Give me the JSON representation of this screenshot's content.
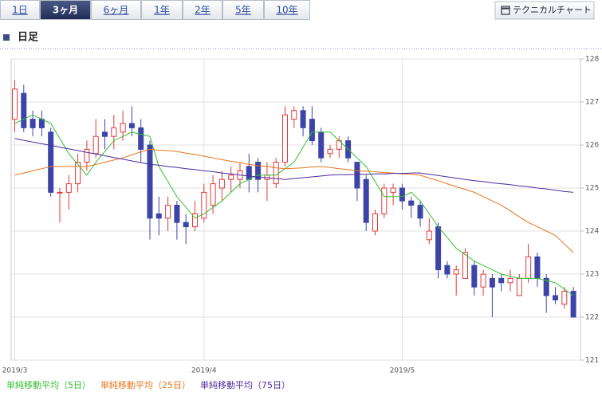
{
  "tabs": [
    "1日",
    "3ヶ月",
    "6ヶ月",
    "1年",
    "2年",
    "5年",
    "10年"
  ],
  "selected_tab": 1,
  "button": "テクニカルチャート",
  "section": "日足",
  "chart_data": {
    "type": "candlestick",
    "categories": [
      "2019/3",
      null,
      null,
      null,
      null,
      null,
      null,
      null,
      null,
      null,
      null,
      null,
      null,
      null,
      null,
      null,
      null,
      null,
      null,
      null,
      null,
      "2019/4",
      null,
      null,
      null,
      null,
      null,
      null,
      null,
      null,
      null,
      null,
      null,
      null,
      null,
      null,
      null,
      null,
      null,
      null,
      null,
      null,
      null,
      "2019/5",
      null,
      null,
      null,
      null,
      null,
      null,
      null,
      null,
      null,
      null,
      null,
      null,
      null,
      null,
      null,
      null,
      null,
      null,
      null
    ],
    "open": [
      126.6,
      127.2,
      126.6,
      126.6,
      126.3,
      124.9,
      124.9,
      125.1,
      125.6,
      125.8,
      126.3,
      126.2,
      126.3,
      126.5,
      126.4,
      126.0,
      124.4,
      124.3,
      124.6,
      124.2,
      124.1,
      124.3,
      124.6,
      125.0,
      125.2,
      125.2,
      125.5,
      125.6,
      125.2,
      125.1,
      125.6,
      126.6,
      126.8,
      126.6,
      126.3,
      125.8,
      125.9,
      126.1,
      125.6,
      125.2,
      124.0,
      124.4,
      124.9,
      125.0,
      124.7,
      124.6,
      123.8,
      124.1,
      123.2,
      123.0,
      122.9,
      123.2,
      122.7,
      122.9,
      122.9,
      122.8,
      122.5,
      122.9,
      123.4,
      122.9,
      122.5,
      122.3,
      122.6
    ],
    "high": [
      127.5,
      127.4,
      126.8,
      126.8,
      126.4,
      125.0,
      125.3,
      125.8,
      126.1,
      126.6,
      126.6,
      126.7,
      126.8,
      126.9,
      126.6,
      126.1,
      124.8,
      124.8,
      124.7,
      124.4,
      124.7,
      125.1,
      125.3,
      125.4,
      125.5,
      125.6,
      125.8,
      125.7,
      125.6,
      125.7,
      126.9,
      126.9,
      126.9,
      126.9,
      126.4,
      126.0,
      126.2,
      126.2,
      125.6,
      125.3,
      124.5,
      125.1,
      125.1,
      125.1,
      124.8,
      124.7,
      124.3,
      124.2,
      123.3,
      123.2,
      123.6,
      123.3,
      123.1,
      123.0,
      123.0,
      123.1,
      123.0,
      123.7,
      123.5,
      123.0,
      122.7,
      122.7,
      122.7
    ],
    "low": [
      126.3,
      126.3,
      126.2,
      126.2,
      124.8,
      124.2,
      124.5,
      124.9,
      125.4,
      125.7,
      125.9,
      125.9,
      126.1,
      126.2,
      125.6,
      123.8,
      123.9,
      124.0,
      123.8,
      123.7,
      124.0,
      124.2,
      124.4,
      124.7,
      124.9,
      125.0,
      124.9,
      124.9,
      124.7,
      125.0,
      125.5,
      126.4,
      126.2,
      126.0,
      125.6,
      125.7,
      125.7,
      125.6,
      124.7,
      124.0,
      123.9,
      124.3,
      124.6,
      124.5,
      124.3,
      124.1,
      123.7,
      122.9,
      122.9,
      122.5,
      122.9,
      122.5,
      122.5,
      122.0,
      122.6,
      122.6,
      122.5,
      122.8,
      122.7,
      122.1,
      122.3,
      122.2,
      122.0
    ],
    "close": [
      127.3,
      126.4,
      126.4,
      126.4,
      124.9,
      124.9,
      125.1,
      125.6,
      125.9,
      126.2,
      126.2,
      126.4,
      126.5,
      126.4,
      125.9,
      124.3,
      124.3,
      124.6,
      124.2,
      124.1,
      124.4,
      124.9,
      125.1,
      125.2,
      125.3,
      125.4,
      125.2,
      125.2,
      125.3,
      125.6,
      126.7,
      126.8,
      126.4,
      126.1,
      125.7,
      125.9,
      126.1,
      125.7,
      125.0,
      124.2,
      124.4,
      125.0,
      125.0,
      124.7,
      124.6,
      124.3,
      124.0,
      123.1,
      123.0,
      123.1,
      123.5,
      122.7,
      123.0,
      122.7,
      122.8,
      122.9,
      122.9,
      123.4,
      122.9,
      122.5,
      122.4,
      122.6,
      122.0
    ],
    "up_color": "#e03a3a",
    "down_color": "#3d44a8",
    "series": [
      {
        "name": "単純移動平均（5日）",
        "color": "#33c033",
        "values": [
          126.5,
          126.6,
          126.7,
          126.6,
          126.5,
          126.15,
          125.8,
          125.55,
          125.3,
          125.6,
          125.85,
          126.1,
          126.2,
          126.3,
          126.25,
          126.2,
          125.5,
          125.15,
          124.8,
          124.55,
          124.3,
          124.4,
          124.55,
          124.7,
          124.9,
          125.1,
          125.2,
          125.3,
          125.3,
          125.3,
          125.45,
          125.6,
          125.95,
          126.3,
          126.3,
          126.3,
          126.1,
          125.9,
          125.7,
          125.5,
          125.15,
          124.8,
          124.8,
          124.8,
          124.9,
          124.7,
          124.4,
          124.1,
          123.85,
          123.6,
          123.45,
          123.3,
          123.2,
          123.1,
          123.0,
          122.95,
          122.9,
          122.9,
          122.9,
          122.85,
          122.8,
          122.65,
          122.5
        ]
      },
      {
        "name": "単純移動平均（25日）",
        "color": "#e8741c",
        "values": [
          125.3,
          125.35,
          125.4,
          125.45,
          125.5,
          125.5,
          125.5,
          125.5,
          125.5,
          125.55,
          125.6,
          125.65,
          125.7,
          125.77,
          125.84,
          125.9,
          125.88,
          125.87,
          125.85,
          125.81,
          125.78,
          125.74,
          125.7,
          125.66,
          125.62,
          125.59,
          125.55,
          125.52,
          125.5,
          125.47,
          125.45,
          125.46,
          125.47,
          125.49,
          125.5,
          125.48,
          125.45,
          125.43,
          125.4,
          125.39,
          125.38,
          125.36,
          125.35,
          125.33,
          125.32,
          125.3,
          125.23,
          125.17,
          125.1,
          125.03,
          124.97,
          124.9,
          124.8,
          124.7,
          124.6,
          124.47,
          124.33,
          124.2,
          124.1,
          124.0,
          123.9,
          123.7,
          123.5
        ]
      },
      {
        "name": "単純移動平均（75日）",
        "color": "#4a2b9e",
        "values": [
          126.15,
          126.11,
          126.07,
          126.03,
          125.99,
          125.95,
          125.91,
          125.87,
          125.83,
          125.79,
          125.75,
          125.71,
          125.67,
          125.63,
          125.59,
          125.55,
          125.53,
          125.5,
          125.48,
          125.45,
          125.43,
          125.4,
          125.38,
          125.35,
          125.33,
          125.3,
          125.28,
          125.26,
          125.24,
          125.22,
          125.2,
          125.22,
          125.24,
          125.26,
          125.28,
          125.3,
          125.31,
          125.31,
          125.32,
          125.32,
          125.33,
          125.33,
          125.34,
          125.34,
          125.35,
          125.35,
          125.32,
          125.29,
          125.26,
          125.23,
          125.2,
          125.17,
          125.15,
          125.12,
          125.1,
          125.08,
          125.05,
          125.03,
          125.0,
          124.98,
          124.95,
          124.92,
          124.9
        ]
      }
    ],
    "ylim": [
      121,
      128
    ],
    "yticks": [
      121,
      122,
      123,
      124,
      125,
      126,
      127,
      128
    ],
    "grid": true
  }
}
